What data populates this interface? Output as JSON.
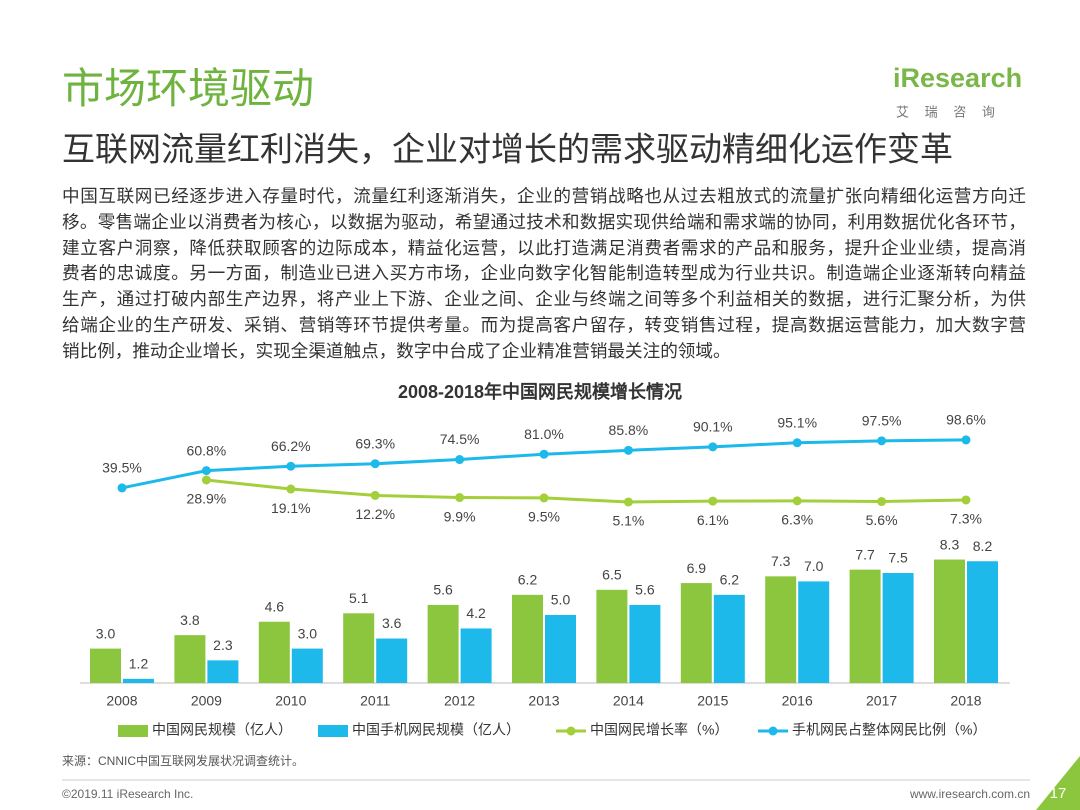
{
  "header": {
    "title": "市场环境驱动",
    "subtitle": "互联网流量红利消失，企业对增长的需求驱动精细化运作变革",
    "logo": "iResearch",
    "logo_cn": "艾 瑞 咨 询"
  },
  "body": {
    "lines": [
      "中国互联网已经逐步进入存量时代，流量红利逐渐消失，企业的营销战略也从过去粗放式的流量扩张向精细化运营方向迁",
      "移。零售端企业以消费者为核心，以数据为驱动，希望通过技术和数据实现供给端和需求端的协同，利用数据优化各环节，",
      "建立客户洞察，降低获取顾客的边际成本，精益化运营，以此打造满足消费者需求的产品和服务，提升企业业绩，提高消",
      "费者的忠诚度。另一方面，制造业已进入买方市场，企业向数字化智能制造转型成为行业共识。制造端企业逐渐转向精益",
      "生产，通过打破内部生产边界，将产业上下游、企业之间、企业与终端之间等多个利益相关的数据，进行汇聚分析，为供",
      "给端企业的生产研发、采销、营销等环节提供考量。而为提高客户留存，转变销售过程，提高数据运营能力，加大数字营",
      "销比例，推动企业增长，实现全渠道触点，数字中台成了企业精准营销最关注的领域。"
    ]
  },
  "chart_data": {
    "type": "bar",
    "title": "2008-2018年中国网民规模增长情况",
    "categories": [
      "2008",
      "2009",
      "2010",
      "2011",
      "2012",
      "2013",
      "2014",
      "2015",
      "2016",
      "2017",
      "2018"
    ],
    "series": [
      {
        "name": "中国网民规模（亿人）",
        "type": "bar",
        "color": "#8cc63e",
        "values": [
          3.0,
          3.8,
          4.6,
          5.1,
          5.6,
          6.2,
          6.5,
          6.9,
          7.3,
          7.7,
          8.3
        ],
        "value_labels": [
          "3.0",
          "3.8",
          "4.6",
          "5.1",
          "5.6",
          "6.2",
          "6.5",
          "6.9",
          "7.3",
          "7.7",
          "8.3"
        ]
      },
      {
        "name": "中国手机网民规模（亿人）",
        "type": "bar",
        "color": "#1cb9ea",
        "values": [
          1.2,
          2.3,
          3.0,
          3.6,
          4.2,
          5.0,
          5.6,
          6.2,
          7.0,
          7.5,
          8.2
        ],
        "value_labels": [
          "1.2",
          "2.3",
          "3.0",
          "3.6",
          "4.2",
          "5.0",
          "5.6",
          "6.2",
          "7.0",
          "7.5",
          "8.2"
        ]
      },
      {
        "name": "中国网民增长率（%）",
        "type": "line",
        "axis": "y2",
        "color": "#a3cf3a",
        "values": [
          null,
          28.9,
          19.1,
          12.2,
          9.9,
          9.5,
          5.1,
          6.1,
          6.3,
          5.6,
          7.3
        ],
        "value_labels": [
          null,
          "28.9%",
          "19.1%",
          "12.2%",
          "9.9%",
          "9.5%",
          "5.1%",
          "6.1%",
          "6.3%",
          "5.6%",
          "7.3%"
        ]
      },
      {
        "name": "手机网民占整体网民比例（%）",
        "type": "line",
        "axis": "y2",
        "color": "#1cb9ea",
        "values": [
          39.5,
          60.8,
          66.2,
          69.3,
          74.5,
          81.0,
          85.8,
          90.1,
          95.1,
          97.5,
          98.6
        ],
        "value_labels": [
          "39.5%",
          "60.8%",
          "66.2%",
          "69.3%",
          "74.5%",
          "81.0%",
          "85.8%",
          "90.1%",
          "95.1%",
          "97.5%",
          "98.6%"
        ]
      }
    ]
  },
  "footer": {
    "source": "来源：CNNIC中国互联网发展状况调查统计。",
    "copyright": "©2019.11 iResearch Inc.",
    "website": "www.iresearch.com.cn",
    "page": "17"
  }
}
